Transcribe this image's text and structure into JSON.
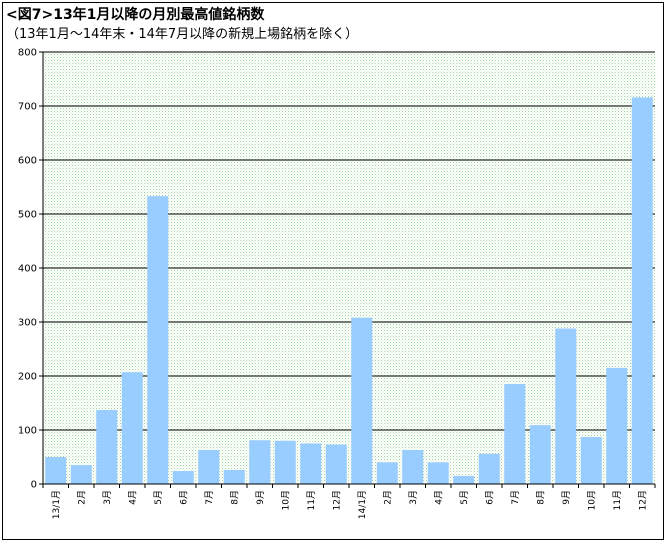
{
  "chart_data": {
    "type": "bar",
    "title": "<図7>13年1月以降の月別最高値銘柄数",
    "subtitle": "（13年1月～14年末・14年7月以降の新規上場銘柄を除く）",
    "categories": [
      "13/1月",
      "2月",
      "3月",
      "4月",
      "5月",
      "6月",
      "7月",
      "8月",
      "9月",
      "10月",
      "11月",
      "12月",
      "14/1月",
      "2月",
      "3月",
      "4月",
      "5月",
      "6月",
      "7月",
      "8月",
      "9月",
      "10月",
      "11月",
      "12月"
    ],
    "values": [
      50,
      35,
      137,
      207,
      533,
      24,
      63,
      26,
      81,
      80,
      75,
      73,
      308,
      40,
      63,
      40,
      15,
      56,
      185,
      109,
      288,
      87,
      215,
      716
    ],
    "ylim": [
      0,
      800
    ],
    "yticks": [
      "0",
      "100",
      "200",
      "300",
      "400",
      "500",
      "600",
      "700",
      "800"
    ],
    "grid": true,
    "colors": {
      "bar": "#99ccff",
      "plot_background": "#e6f5e6",
      "gridline": "#000000",
      "axis": "#000000"
    }
  }
}
